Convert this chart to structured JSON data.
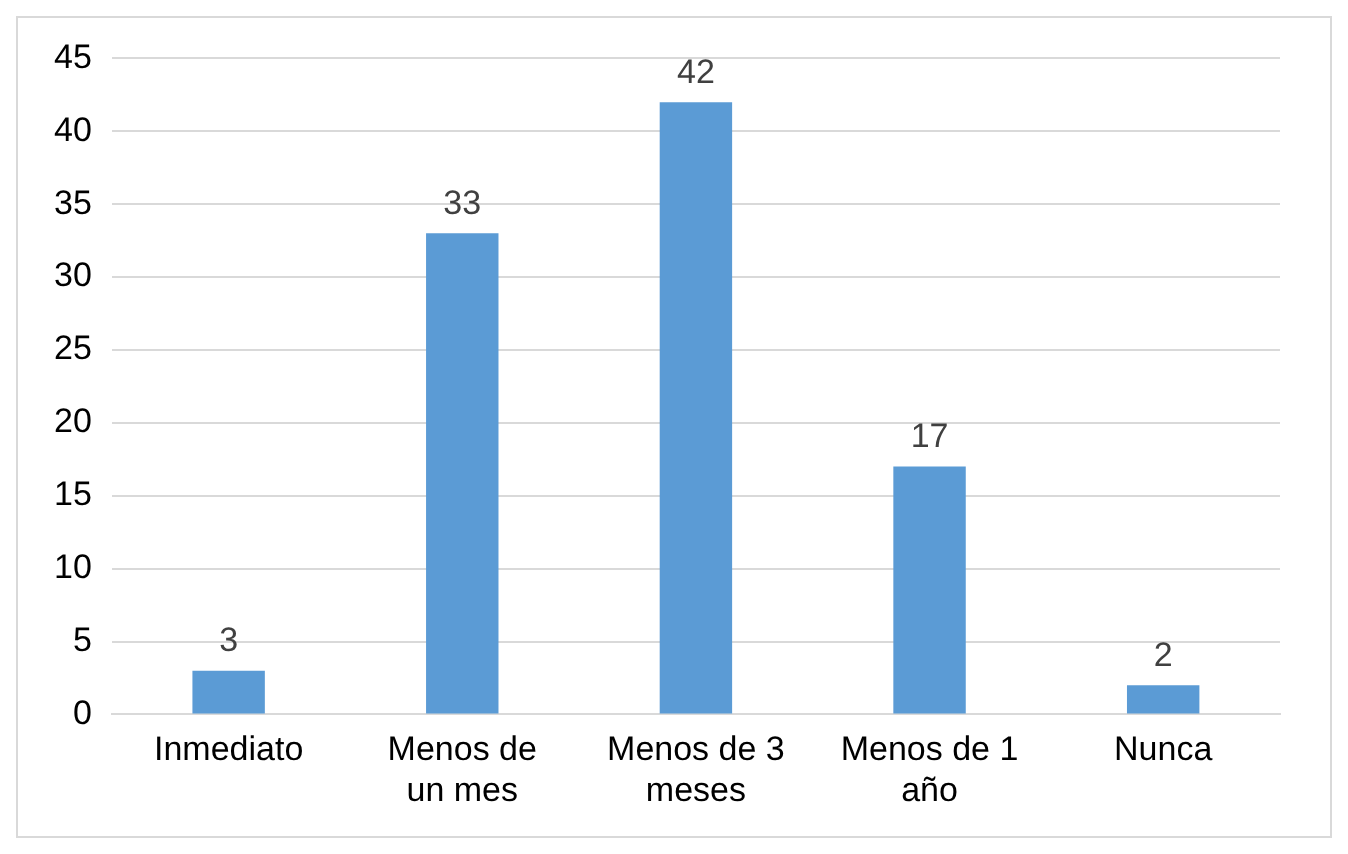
{
  "chart_data": {
    "type": "bar",
    "categories": [
      "Inmediato",
      "Menos de un mes",
      "Menos de 3 meses",
      "Menos de 1 año",
      "Nunca"
    ],
    "values": [
      3,
      33,
      42,
      17,
      2
    ],
    "color": "#5b9bd5",
    "ylim": [
      0,
      45
    ],
    "yticks": [
      0,
      5,
      10,
      15,
      20,
      25,
      30,
      35,
      40,
      45
    ],
    "grid": "y",
    "data_labels": true,
    "legend": false
  }
}
